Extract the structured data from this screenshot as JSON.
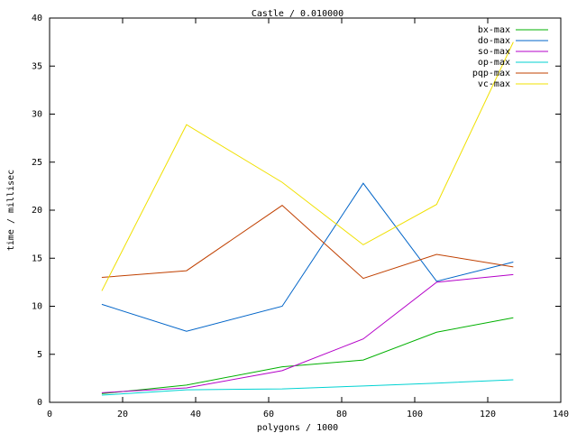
{
  "chart_data": {
    "type": "line",
    "title": "Castle / 0.010000",
    "xlabel": "polygons / 1000",
    "ylabel": "time / millisec",
    "x": [
      14.3,
      37.5,
      63.7,
      85.9,
      106,
      127
    ],
    "series": [
      {
        "name": "bx-max",
        "color": "#00b000",
        "values": [
          0.9,
          1.8,
          3.7,
          4.4,
          7.3,
          8.8
        ]
      },
      {
        "name": "do-max",
        "color": "#0064c8",
        "values": [
          10.2,
          7.4,
          10.0,
          22.8,
          12.6,
          14.6
        ]
      },
      {
        "name": "so-max",
        "color": "#b400c8",
        "values": [
          1.0,
          1.5,
          3.3,
          6.6,
          12.5,
          13.3
        ]
      },
      {
        "name": "op-max",
        "color": "#00d2d2",
        "values": [
          0.75,
          1.3,
          1.4,
          1.7,
          2.0,
          2.35
        ]
      },
      {
        "name": "pqp-max",
        "color": "#c04000",
        "values": [
          13.0,
          13.7,
          20.5,
          12.9,
          15.4,
          14.1
        ]
      },
      {
        "name": "vc-max",
        "color": "#f0e000",
        "values": [
          11.6,
          28.9,
          22.9,
          16.4,
          20.6,
          37.5
        ]
      }
    ],
    "xlim": [
      0,
      140
    ],
    "xticks": [
      0,
      20,
      40,
      60,
      80,
      100,
      120,
      140
    ],
    "ylim": [
      0,
      40
    ],
    "yticks": [
      0,
      5,
      10,
      15,
      20,
      25,
      30,
      35,
      40
    ],
    "grid": false,
    "legend": "top-right"
  }
}
